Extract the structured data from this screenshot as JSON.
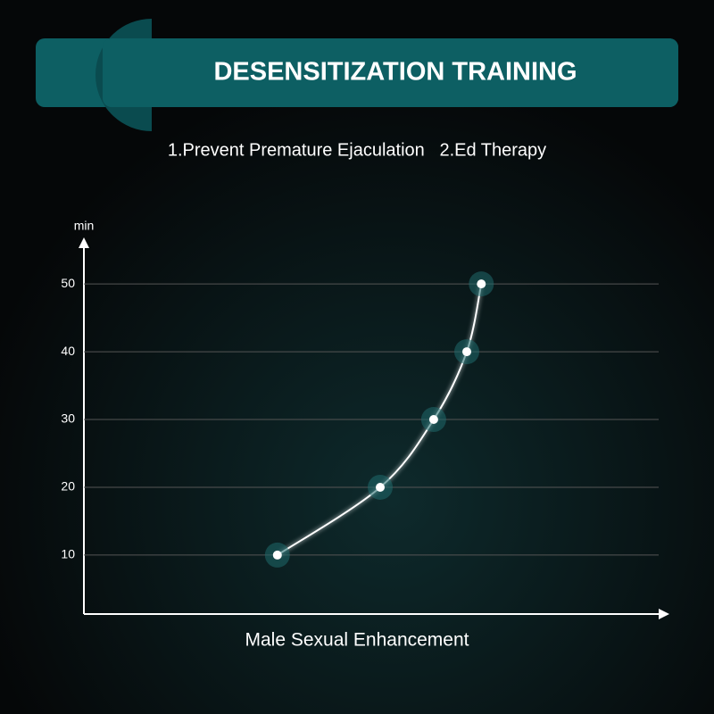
{
  "chart_data": {
    "type": "line",
    "title": "DESENSITIZATION TRAINING",
    "subtitle": "1.Prevent Premature Ejaculation   2.Ed Therapy",
    "y_label": "min",
    "x_label": "Male Sexual Enhancement",
    "x": [
      33.3,
      51,
      60.2,
      65.9,
      68.4
    ],
    "xlim": [
      0,
      100
    ],
    "series": [
      {
        "color": "#ffffff",
        "values": [
          10,
          20,
          30,
          40,
          50
        ]
      }
    ],
    "ylim": [
      1.3,
      56.6
    ],
    "yticks": [
      10,
      20,
      30,
      40,
      50
    ],
    "grid": true
  }
}
